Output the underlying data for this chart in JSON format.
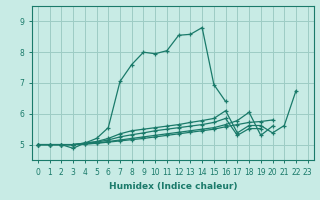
{
  "xlabel": "Humidex (Indice chaleur)",
  "ylabel": "",
  "background_color": "#c8ebe5",
  "grid_color": "#9dccc4",
  "line_color": "#1a7a6a",
  "xlim": [
    -0.5,
    23.5
  ],
  "ylim": [
    4.5,
    9.5
  ],
  "yticks": [
    5,
    6,
    7,
    8,
    9
  ],
  "xticks": [
    0,
    1,
    2,
    3,
    4,
    5,
    6,
    7,
    8,
    9,
    10,
    11,
    12,
    13,
    14,
    15,
    16,
    17,
    18,
    19,
    20,
    21,
    22,
    23
  ],
  "lines": [
    {
      "x": [
        0,
        1,
        2,
        3,
        4,
        5,
        6,
        7,
        8,
        9,
        10,
        11,
        12,
        13,
        14,
        15,
        16
      ],
      "y": [
        5.0,
        5.0,
        5.0,
        4.88,
        5.05,
        5.2,
        5.55,
        7.05,
        7.6,
        8.0,
        7.95,
        8.05,
        8.55,
        8.58,
        8.8,
        6.95,
        6.4
      ]
    },
    {
      "x": [
        0,
        1,
        2,
        3,
        4,
        5,
        6,
        7,
        8,
        9,
        10,
        11,
        12,
        13,
        14,
        15,
        16,
        17,
        18,
        19,
        20,
        21,
        22
      ],
      "y": [
        5.0,
        5.0,
        5.0,
        5.0,
        5.05,
        5.1,
        5.2,
        5.35,
        5.45,
        5.5,
        5.55,
        5.6,
        5.65,
        5.72,
        5.78,
        5.85,
        6.1,
        5.38,
        5.62,
        5.62,
        5.38,
        5.62,
        6.75
      ]
    },
    {
      "x": [
        0,
        1,
        2,
        3,
        4,
        5,
        6,
        7,
        8,
        9,
        10,
        11,
        12,
        13,
        14,
        15,
        16,
        17,
        18,
        19
      ],
      "y": [
        5.0,
        5.0,
        5.0,
        5.0,
        5.05,
        5.08,
        5.15,
        5.25,
        5.32,
        5.38,
        5.45,
        5.5,
        5.55,
        5.6,
        5.65,
        5.72,
        5.85,
        5.3,
        5.52,
        5.52
      ]
    },
    {
      "x": [
        0,
        1,
        2,
        3,
        4,
        5,
        6,
        7,
        8,
        9,
        10,
        11,
        12,
        13,
        14,
        15,
        16,
        17,
        18,
        19,
        20
      ],
      "y": [
        5.0,
        5.0,
        5.0,
        5.0,
        5.02,
        5.05,
        5.1,
        5.15,
        5.2,
        5.25,
        5.3,
        5.35,
        5.4,
        5.45,
        5.5,
        5.55,
        5.65,
        5.78,
        6.05,
        5.3,
        5.6
      ]
    },
    {
      "x": [
        0,
        1,
        2,
        3,
        4,
        5,
        6,
        7,
        8,
        9,
        10,
        11,
        12,
        13,
        14,
        15,
        16,
        17,
        18,
        19,
        20
      ],
      "y": [
        5.0,
        5.0,
        5.0,
        5.0,
        5.02,
        5.04,
        5.08,
        5.12,
        5.16,
        5.2,
        5.25,
        5.3,
        5.35,
        5.4,
        5.45,
        5.5,
        5.58,
        5.65,
        5.72,
        5.75,
        5.8
      ]
    }
  ]
}
